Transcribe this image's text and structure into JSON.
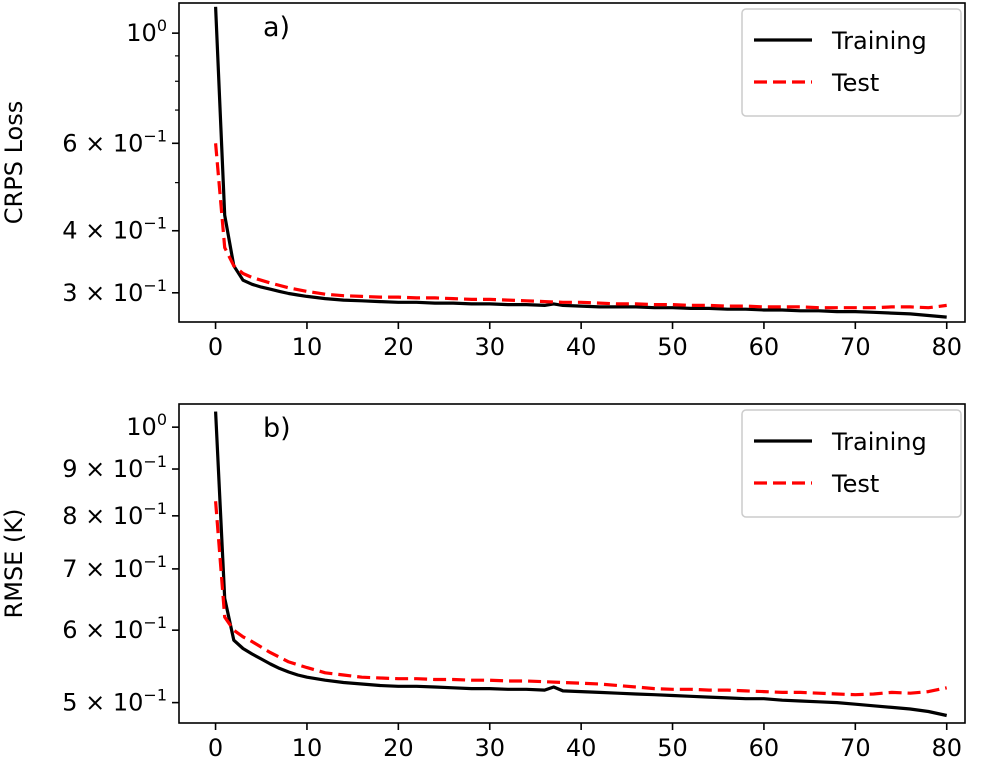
{
  "chart_data": [
    {
      "type": "line",
      "panel_label": "a)",
      "ylabel": "CRPS Loss",
      "yscale": "log",
      "xlim": [
        -4,
        82
      ],
      "ylim": [
        0.262,
        1.15
      ],
      "xticks": [
        0,
        10,
        20,
        30,
        40,
        50,
        60,
        70,
        80
      ],
      "yticks": [
        {
          "value": 1.0,
          "label": "10",
          "sup": "0"
        },
        {
          "value": 0.6,
          "label": "6 × 10",
          "sup": "−1"
        },
        {
          "value": 0.4,
          "label": "4 × 10",
          "sup": "−1"
        },
        {
          "value": 0.3,
          "label": "3 × 10",
          "sup": "−1"
        }
      ],
      "minor_yticks": [
        0.9,
        0.8,
        0.7,
        0.5
      ],
      "legend": "top-right",
      "series": [
        {
          "name": "Training",
          "color": "#000000",
          "style": "solid",
          "x": [
            0,
            1,
            2,
            3,
            4,
            5,
            6,
            7,
            8,
            9,
            10,
            12,
            14,
            16,
            18,
            20,
            22,
            24,
            26,
            28,
            30,
            32,
            34,
            36,
            37,
            38,
            40,
            42,
            44,
            46,
            48,
            50,
            52,
            54,
            56,
            58,
            60,
            62,
            64,
            66,
            68,
            70,
            72,
            74,
            76,
            78,
            80
          ],
          "y": [
            1.13,
            0.43,
            0.34,
            0.318,
            0.312,
            0.308,
            0.305,
            0.302,
            0.299,
            0.297,
            0.295,
            0.292,
            0.29,
            0.289,
            0.288,
            0.287,
            0.287,
            0.286,
            0.286,
            0.285,
            0.285,
            0.284,
            0.284,
            0.283,
            0.285,
            0.283,
            0.282,
            0.281,
            0.281,
            0.281,
            0.28,
            0.28,
            0.279,
            0.279,
            0.278,
            0.278,
            0.277,
            0.277,
            0.276,
            0.276,
            0.275,
            0.275,
            0.274,
            0.273,
            0.272,
            0.27,
            0.268
          ]
        },
        {
          "name": "Test",
          "color": "#ff0000",
          "style": "dashed",
          "x": [
            0,
            1,
            2,
            3,
            4,
            6,
            8,
            10,
            12,
            14,
            16,
            18,
            20,
            22,
            24,
            26,
            28,
            30,
            32,
            34,
            36,
            38,
            40,
            42,
            44,
            46,
            48,
            50,
            52,
            54,
            56,
            58,
            60,
            62,
            64,
            66,
            68,
            70,
            72,
            74,
            76,
            78,
            80
          ],
          "y": [
            0.6,
            0.37,
            0.34,
            0.328,
            0.322,
            0.314,
            0.307,
            0.302,
            0.298,
            0.296,
            0.295,
            0.294,
            0.294,
            0.293,
            0.293,
            0.292,
            0.291,
            0.291,
            0.29,
            0.289,
            0.288,
            0.287,
            0.287,
            0.286,
            0.285,
            0.285,
            0.284,
            0.284,
            0.283,
            0.283,
            0.282,
            0.282,
            0.281,
            0.281,
            0.281,
            0.28,
            0.28,
            0.28,
            0.28,
            0.281,
            0.281,
            0.28,
            0.283
          ]
        }
      ]
    },
    {
      "type": "line",
      "panel_label": "b)",
      "ylabel": "RMSE (K)",
      "yscale": "log",
      "xlim": [
        -4,
        82
      ],
      "ylim": [
        0.475,
        1.06
      ],
      "xticks": [
        0,
        10,
        20,
        30,
        40,
        50,
        60,
        70,
        80
      ],
      "yticks": [
        {
          "value": 1.0,
          "label": "10",
          "sup": "0"
        },
        {
          "value": 0.9,
          "label": "9 × 10",
          "sup": "−1"
        },
        {
          "value": 0.8,
          "label": "8 × 10",
          "sup": "−1"
        },
        {
          "value": 0.7,
          "label": "7 × 10",
          "sup": "−1"
        },
        {
          "value": 0.6,
          "label": "6 × 10",
          "sup": "−1"
        },
        {
          "value": 0.5,
          "label": "5 × 10",
          "sup": "−1"
        }
      ],
      "minor_yticks": [],
      "legend": "top-right",
      "series": [
        {
          "name": "Training",
          "color": "#000000",
          "style": "solid",
          "x": [
            0,
            1,
            2,
            3,
            4,
            5,
            6,
            7,
            8,
            9,
            10,
            12,
            14,
            16,
            18,
            20,
            22,
            24,
            26,
            28,
            30,
            32,
            34,
            36,
            37,
            38,
            40,
            42,
            44,
            46,
            48,
            50,
            52,
            54,
            56,
            58,
            60,
            62,
            64,
            66,
            68,
            70,
            72,
            74,
            76,
            78,
            80
          ],
          "y": [
            1.04,
            0.65,
            0.585,
            0.573,
            0.565,
            0.558,
            0.551,
            0.545,
            0.54,
            0.536,
            0.533,
            0.529,
            0.526,
            0.524,
            0.522,
            0.521,
            0.521,
            0.52,
            0.519,
            0.518,
            0.518,
            0.517,
            0.517,
            0.516,
            0.52,
            0.515,
            0.514,
            0.513,
            0.512,
            0.511,
            0.51,
            0.509,
            0.508,
            0.507,
            0.506,
            0.505,
            0.505,
            0.503,
            0.502,
            0.501,
            0.5,
            0.498,
            0.496,
            0.494,
            0.492,
            0.489,
            0.484
          ]
        },
        {
          "name": "Test",
          "color": "#ff0000",
          "style": "dashed",
          "x": [
            0,
            1,
            2,
            3,
            4,
            6,
            8,
            10,
            12,
            14,
            16,
            18,
            20,
            22,
            24,
            26,
            28,
            30,
            32,
            34,
            36,
            38,
            40,
            42,
            44,
            46,
            48,
            50,
            52,
            54,
            56,
            58,
            60,
            62,
            64,
            66,
            68,
            70,
            72,
            74,
            76,
            78,
            80
          ],
          "y": [
            0.83,
            0.62,
            0.6,
            0.59,
            0.583,
            0.567,
            0.554,
            0.546,
            0.539,
            0.536,
            0.533,
            0.532,
            0.531,
            0.531,
            0.53,
            0.53,
            0.529,
            0.529,
            0.528,
            0.528,
            0.527,
            0.526,
            0.525,
            0.524,
            0.522,
            0.52,
            0.518,
            0.517,
            0.517,
            0.516,
            0.516,
            0.515,
            0.514,
            0.513,
            0.513,
            0.512,
            0.511,
            0.51,
            0.511,
            0.513,
            0.512,
            0.514,
            0.519
          ]
        }
      ]
    }
  ]
}
